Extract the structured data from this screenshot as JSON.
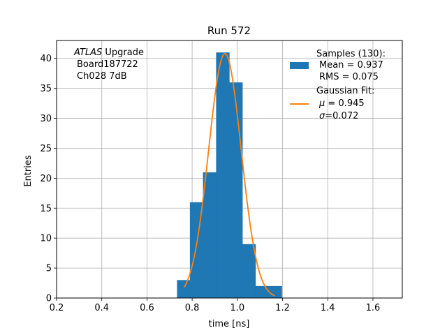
{
  "chart_data": {
    "type": "bar",
    "title": "Run 572",
    "xlabel": "time [ns]",
    "ylabel": "Entries",
    "xlim": [
      0.2,
      1.73
    ],
    "ylim": [
      0,
      43
    ],
    "grid": true,
    "xticks": [
      "0.2",
      "0.4",
      "0.6",
      "0.8",
      "1.0",
      "1.2",
      "1.4",
      "1.6"
    ],
    "yticks": [
      "0",
      "5",
      "10",
      "15",
      "20",
      "25",
      "30",
      "35",
      "40"
    ],
    "xtick_values": [
      0.2,
      0.4,
      0.6,
      0.8,
      1.0,
      1.2,
      1.4,
      1.6
    ],
    "ytick_values": [
      0,
      5,
      10,
      15,
      20,
      25,
      30,
      35,
      40
    ],
    "histogram": {
      "bin_edges": [
        0.733,
        0.79,
        0.848,
        0.906,
        0.964,
        1.022,
        1.08,
        1.138,
        1.196
      ],
      "counts": [
        3,
        16,
        21,
        41,
        36,
        9,
        2,
        2
      ],
      "color": "#1f77b4"
    },
    "fit": {
      "mean": 0.945,
      "sigma": 0.072,
      "amplitude": 40.8,
      "x_range": [
        0.765,
        1.165
      ],
      "color": "#ff7f0e"
    },
    "annotation": {
      "line1_italic": "ATLAS",
      "line1_rest": " Upgrade",
      "line2": "Board187722",
      "line3": "Ch028 7dB"
    },
    "legend": {
      "position": "top-right",
      "samples_title": "Samples (130):",
      "samples_mean": "Mean = 0.937",
      "samples_rms": "RMS = 0.075",
      "fit_title": "Gaussian Fit:",
      "fit_mu_symbol": "μ",
      "fit_mu_text": " = 0.945",
      "fit_sigma_symbol": "σ",
      "fit_sigma_text": "=0.072"
    }
  }
}
